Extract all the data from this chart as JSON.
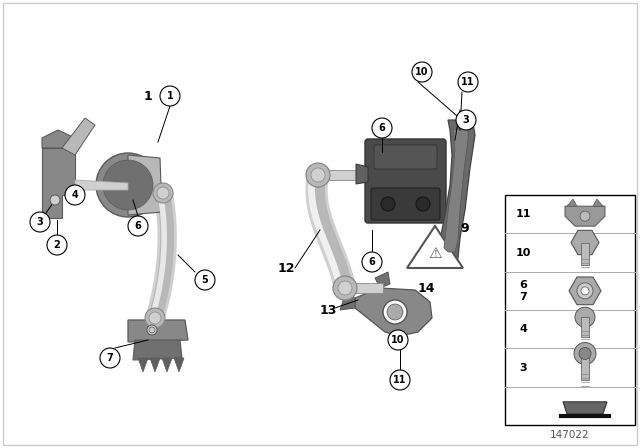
{
  "background_color": "#ffffff",
  "diagram_number": "147022",
  "figsize": [
    6.4,
    4.48
  ],
  "dpi": 100,
  "callout_bg": "#ffffff",
  "callout_edge": "#000000",
  "legend_edge": "#000000",
  "text_color": "#000000",
  "gray_dark": "#5a5a5a",
  "gray_mid": "#888888",
  "gray_light": "#b8b8b8",
  "gray_lighter": "#d0d0d0",
  "gray_rod": "#c0c0c0",
  "gray_rod_hi": "#e8e8e8"
}
